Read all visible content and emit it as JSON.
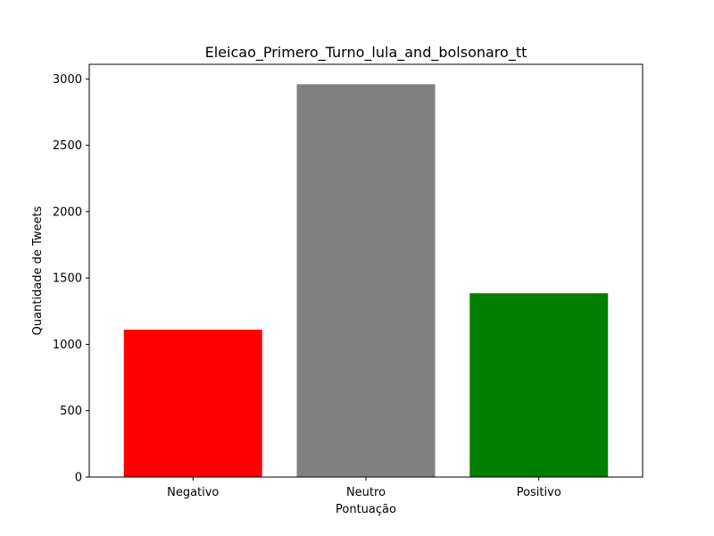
{
  "chart_data": {
    "type": "bar",
    "title": "Eleicao_Primero_Turno_lula_and_bolsonaro_tt",
    "xlabel": "Pontuação",
    "ylabel": "Quantidade de Tweets",
    "categories": [
      "Negativo",
      "Neutro",
      "Positivo"
    ],
    "values": [
      1110,
      2960,
      1385
    ],
    "colors": [
      "#ff0000",
      "#808080",
      "#008000"
    ],
    "ylim": [
      0,
      3110
    ],
    "yticks": [
      0,
      500,
      1000,
      1500,
      2000,
      2500,
      3000
    ],
    "grid": false,
    "legend": "none"
  }
}
